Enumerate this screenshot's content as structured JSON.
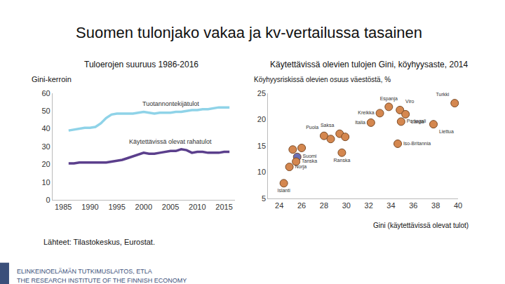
{
  "title": "Suomen tulonjako vakaa ja kv-vertailussa tasainen",
  "source": "Lähteet: Tilastokeskus, Eurostat.",
  "footer": [
    "ELINKEINOELÄMÄN TUTKIMUSLAITOS, ETLA",
    "THE RESEARCH INSTITUTE OF THE FINNISH ECONOMY"
  ],
  "chart_data": [
    {
      "type": "line",
      "title": "Tuloerojen suuruus 1986-2016",
      "y_label": "Gini-kerroin",
      "x": [
        1986,
        1987,
        1988,
        1989,
        1990,
        1991,
        1992,
        1993,
        1994,
        1995,
        1996,
        1997,
        1998,
        1999,
        2000,
        2001,
        2002,
        2003,
        2004,
        2005,
        2006,
        2007,
        2008,
        2009,
        2010,
        2011,
        2012,
        2013,
        2014,
        2015,
        2016
      ],
      "series": [
        {
          "name": "Tuotannontekijätulot",
          "color": "#8fd3e8",
          "line_style": "solid",
          "values": [
            39,
            39.5,
            40,
            40.5,
            40.5,
            41,
            43,
            46,
            48,
            48.5,
            48.5,
            48.5,
            48.5,
            49,
            49.5,
            49,
            48.5,
            49,
            49,
            49,
            49.5,
            49.5,
            50,
            50.5,
            50.5,
            51,
            51,
            51.5,
            52,
            52,
            52
          ]
        },
        {
          "name": "Käytettävissä olevat rahatulot",
          "color": "#5b3f8c",
          "line_style": "solid",
          "values": [
            20.5,
            20.5,
            21,
            21,
            21,
            21,
            21,
            21,
            21.5,
            22,
            22.5,
            23.5,
            24.5,
            25.5,
            26.5,
            26,
            26,
            26.5,
            27,
            27.5,
            27.5,
            28.5,
            28,
            26.5,
            27,
            27,
            26.5,
            26.5,
            26.5,
            27,
            27
          ]
        }
      ],
      "xlim": [
        1983,
        2017
      ],
      "xticks": [
        1985,
        1990,
        1995,
        2000,
        2005,
        2010,
        2015
      ],
      "ylim": [
        0,
        60
      ],
      "yticks": [
        0,
        10,
        20,
        30,
        40,
        50,
        60
      ],
      "grid": false
    },
    {
      "type": "scatter",
      "title": "Käytettävissä olevien tulojen Gini, köyhyysaste, 2014",
      "x_label": "Gini (käytettävissä olevat tulot)",
      "y_label": "Köyhyysriskissä olevien osuus väestöstä, %",
      "marker": "circle",
      "labels": [
        "Turkki",
        "Espanja",
        "Viro",
        "Kreikka",
        "Latvia",
        "Portugali",
        "Italia",
        "Liettua",
        "Saksa",
        "Puola",
        null,
        null,
        "Iso-Britannia",
        "Ranska",
        null,
        null,
        "Suomi",
        "Tanska",
        "Norja",
        "Islanti"
      ],
      "x": [
        39.7,
        33.8,
        34.8,
        33.0,
        35.3,
        34.9,
        32.2,
        37.8,
        29.4,
        28.0,
        28.6,
        29.9,
        34.6,
        29.6,
        25.2,
        26.0,
        25.6,
        25.5,
        24.9,
        24.4
      ],
      "y": [
        23.1,
        22.4,
        21.8,
        21.2,
        21.0,
        19.6,
        19.4,
        19.1,
        17.3,
        16.9,
        16.3,
        16.7,
        15.4,
        13.7,
        14.3,
        14.6,
        12.9,
        12.0,
        11.0,
        7.9
      ],
      "colors": [
        "#d4874f",
        "#d4874f",
        "#d4874f",
        "#d4874f",
        "#d4874f",
        "#d4874f",
        "#d4874f",
        "#d4874f",
        "#d4874f",
        "#d4874f",
        "#d4874f",
        "#d4874f",
        "#d4874f",
        "#d4874f",
        "#d4874f",
        "#d4874f",
        "#6a6fb5",
        "#d4874f",
        "#d4874f",
        "#d4874f"
      ],
      "xlim": [
        23,
        40
      ],
      "xticks": [
        24,
        26,
        28,
        30,
        32,
        34,
        36,
        38,
        40
      ],
      "ylim": [
        5,
        25
      ],
      "yticks": [
        5,
        10,
        15,
        20,
        25
      ],
      "grid": false
    }
  ]
}
